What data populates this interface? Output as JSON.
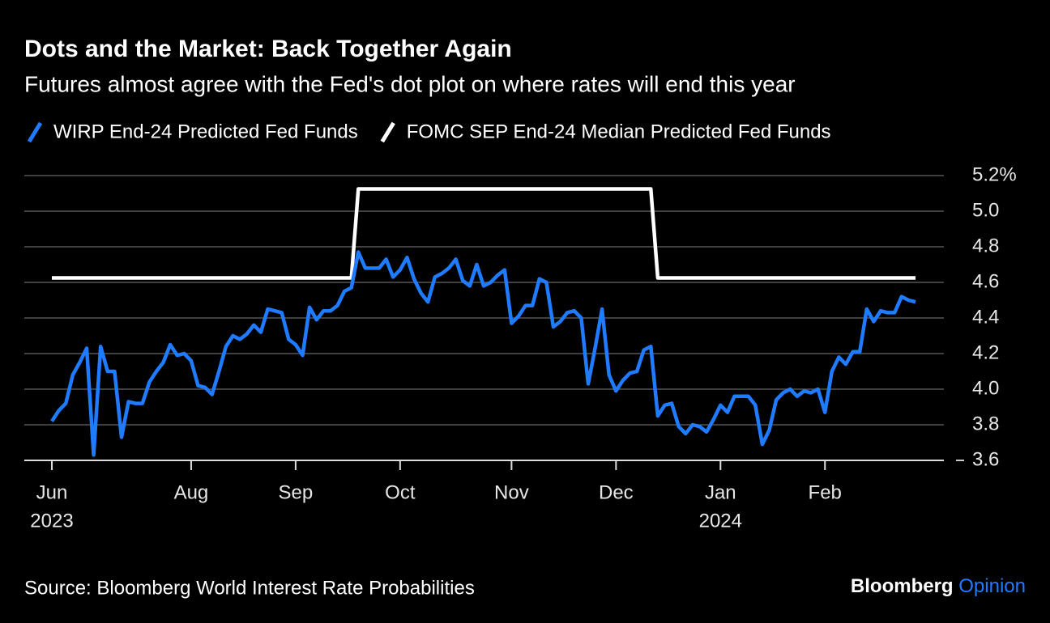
{
  "chart_data": {
    "type": "line",
    "title": "Dots and the Market: Back Together Again",
    "subtitle": "Futures almost agree with the Fed's dot plot on where rates will end this year",
    "source": "Source: Bloomberg World Interest Rate Probabilities",
    "credit": [
      "Bloomberg",
      "Opinion"
    ],
    "categories": [
      [
        "Jun",
        "2023"
      ],
      null,
      null,
      null,
      null,
      null,
      null,
      null,
      null,
      null,
      null,
      null,
      null,
      null,
      null,
      null,
      null,
      null,
      null,
      null,
      "Aug",
      null,
      null,
      null,
      null,
      null,
      null,
      null,
      null,
      null,
      null,
      null,
      null,
      null,
      null,
      "Sep",
      null,
      null,
      null,
      null,
      null,
      null,
      null,
      null,
      null,
      null,
      null,
      null,
      null,
      null,
      "Oct",
      null,
      null,
      null,
      null,
      null,
      null,
      null,
      null,
      null,
      null,
      null,
      null,
      null,
      null,
      null,
      "Nov",
      null,
      null,
      null,
      null,
      null,
      null,
      null,
      null,
      null,
      null,
      null,
      null,
      null,
      null,
      "Dec",
      null,
      null,
      null,
      null,
      null,
      null,
      null,
      null,
      null,
      null,
      null,
      null,
      null,
      null,
      [
        "Jan",
        "2024"
      ],
      null,
      null,
      null,
      null,
      null,
      null,
      null,
      null,
      null,
      null,
      null,
      null,
      null,
      null,
      "Feb",
      null,
      null,
      null,
      null,
      null,
      null,
      null,
      null,
      null,
      null,
      null,
      null,
      null
    ],
    "series": [
      {
        "name": "WIRP End-24 Predicted Fed Funds",
        "color": "#1f7bff",
        "values": [
          3.82,
          3.88,
          3.92,
          4.08,
          4.15,
          4.23,
          3.63,
          4.24,
          4.1,
          4.1,
          3.73,
          3.93,
          3.92,
          3.92,
          4.04,
          4.1,
          4.15,
          4.25,
          4.19,
          4.2,
          4.16,
          4.02,
          4.01,
          3.97,
          4.1,
          4.24,
          4.3,
          4.28,
          4.31,
          4.36,
          4.32,
          4.45,
          4.44,
          4.43,
          4.28,
          4.25,
          4.19,
          4.46,
          4.39,
          4.44,
          4.44,
          4.47,
          4.55,
          4.57,
          4.77,
          4.68,
          4.68,
          4.68,
          4.73,
          4.63,
          4.67,
          4.74,
          4.62,
          4.54,
          4.49,
          4.63,
          4.65,
          4.68,
          4.73,
          4.61,
          4.58,
          4.7,
          4.58,
          4.6,
          4.64,
          4.67,
          4.37,
          4.41,
          4.47,
          4.47,
          4.62,
          4.6,
          4.35,
          4.38,
          4.43,
          4.44,
          4.4,
          4.03,
          4.23,
          4.45,
          4.08,
          3.99,
          4.05,
          4.09,
          4.1,
          4.22,
          4.24,
          3.85,
          3.91,
          3.92,
          3.79,
          3.75,
          3.8,
          3.79,
          3.76,
          3.83,
          3.91,
          3.87,
          3.96,
          3.96,
          3.96,
          3.91,
          3.69,
          3.77,
          3.94,
          3.98,
          4.0,
          3.96,
          3.99,
          3.98,
          4.0,
          3.87,
          4.1,
          4.18,
          4.14,
          4.21,
          4.21,
          4.45,
          4.38,
          4.44,
          4.43,
          4.43,
          4.52,
          4.5,
          4.49
        ]
      },
      {
        "name": "FOMC SEP End-24 Median Predicted Fed Funds",
        "color": "#ffffff",
        "values": [
          4.625,
          4.625,
          4.625,
          4.625,
          4.625,
          4.625,
          4.625,
          4.625,
          4.625,
          4.625,
          4.625,
          4.625,
          4.625,
          4.625,
          4.625,
          4.625,
          4.625,
          4.625,
          4.625,
          4.625,
          4.625,
          4.625,
          4.625,
          4.625,
          4.625,
          4.625,
          4.625,
          4.625,
          4.625,
          4.625,
          4.625,
          4.625,
          4.625,
          4.625,
          4.625,
          4.625,
          4.625,
          4.625,
          4.625,
          4.625,
          4.625,
          4.625,
          4.625,
          4.625,
          5.125,
          5.125,
          5.125,
          5.125,
          5.125,
          5.125,
          5.125,
          5.125,
          5.125,
          5.125,
          5.125,
          5.125,
          5.125,
          5.125,
          5.125,
          5.125,
          5.125,
          5.125,
          5.125,
          5.125,
          5.125,
          5.125,
          5.125,
          5.125,
          5.125,
          5.125,
          5.125,
          5.125,
          5.125,
          5.125,
          5.125,
          5.125,
          5.125,
          5.125,
          5.125,
          5.125,
          5.125,
          5.125,
          5.125,
          5.125,
          5.125,
          5.125,
          5.125,
          4.625,
          4.625,
          4.625,
          4.625,
          4.625,
          4.625,
          4.625,
          4.625,
          4.625,
          4.625,
          4.625,
          4.625,
          4.625,
          4.625,
          4.625,
          4.625,
          4.625,
          4.625,
          4.625,
          4.625,
          4.625,
          4.625,
          4.625,
          4.625,
          4.625,
          4.625,
          4.625,
          4.625,
          4.625,
          4.625,
          4.625,
          4.625,
          4.625,
          4.625,
          4.625,
          4.625,
          4.625,
          4.625
        ]
      }
    ],
    "ylim": [
      3.6,
      5.2
    ],
    "yticks": [
      3.6,
      3.8,
      {
        "value": 4,
        "label": "4.0"
      },
      4.2,
      4.4,
      4.6,
      4.8,
      {
        "value": 5,
        "label": "5.0"
      },
      {
        "value": 5.2,
        "label": "5.2%"
      }
    ],
    "grid": true,
    "legend": "top-left"
  }
}
